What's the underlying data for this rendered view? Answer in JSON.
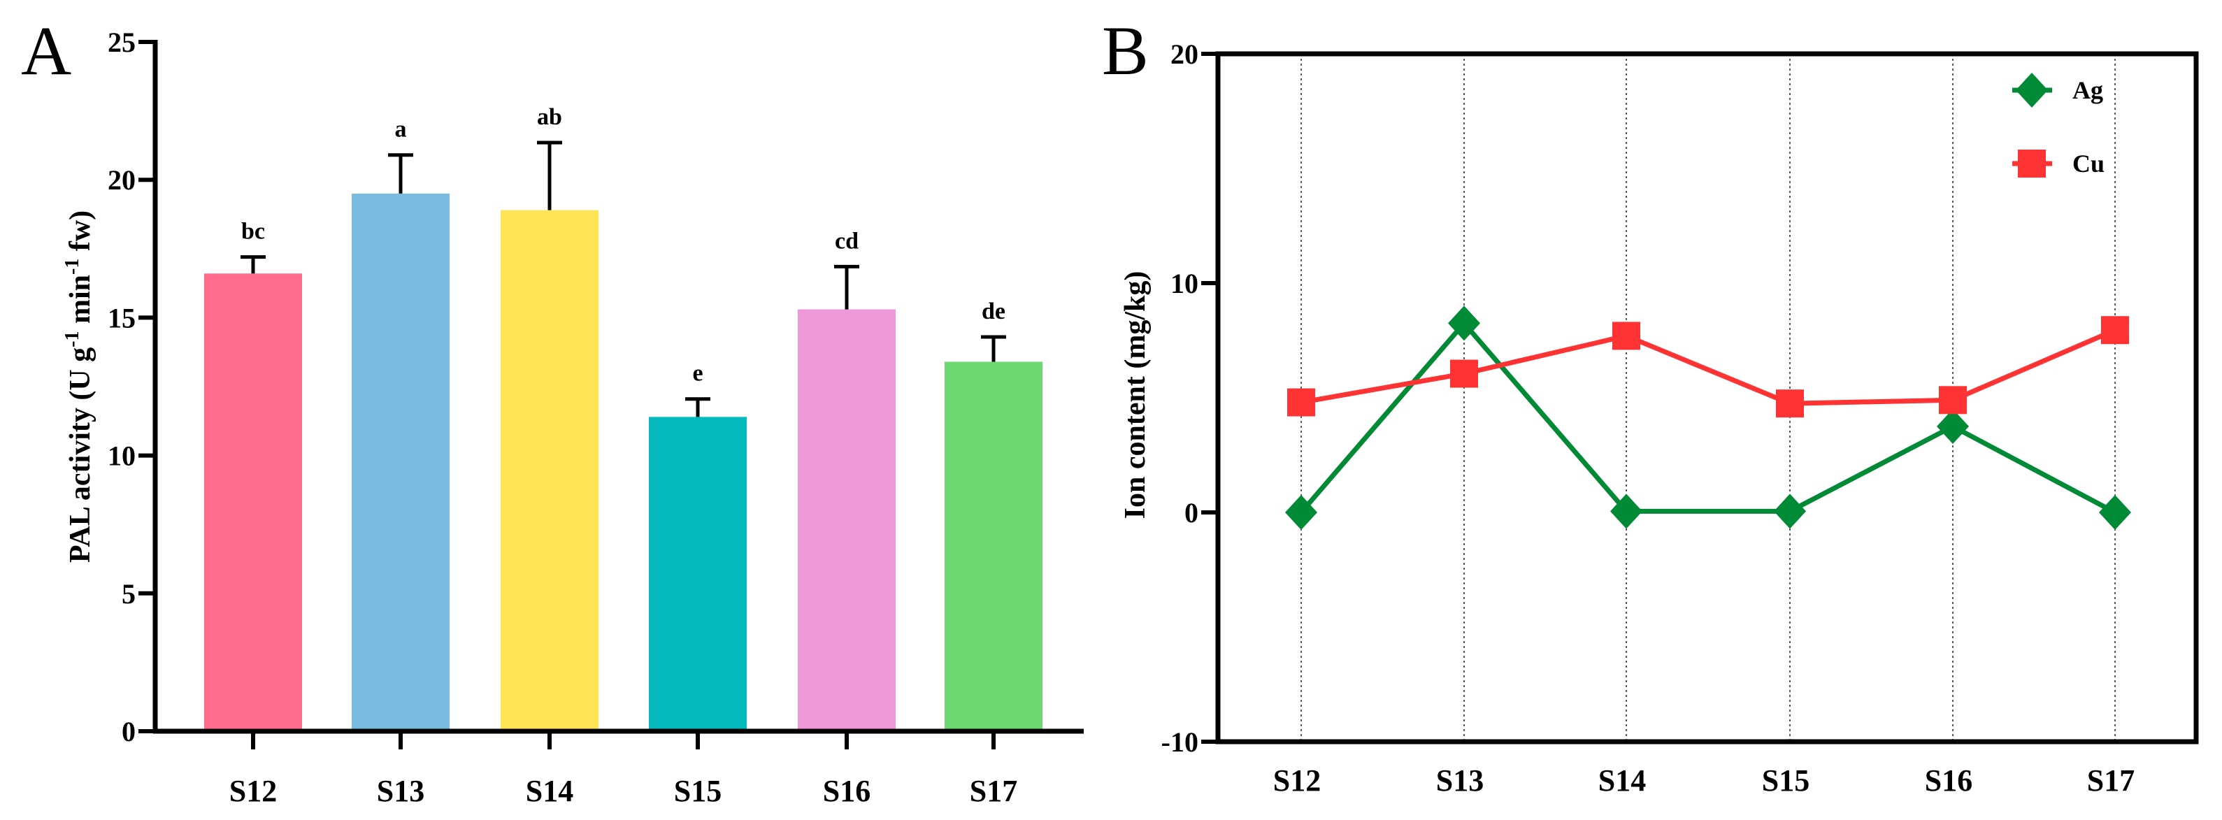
{
  "chart_data": [
    {
      "panel": "A",
      "type": "bar",
      "categories": [
        "S12",
        "S13",
        "S14",
        "S15",
        "S16",
        "S17"
      ],
      "values": [
        16.6,
        19.5,
        18.9,
        11.4,
        15.3,
        13.4
      ],
      "error_upper": [
        0.6,
        1.4,
        2.45,
        0.65,
        1.55,
        0.9
      ],
      "significance": [
        "bc",
        "a",
        "ab",
        "e",
        "cd",
        "de"
      ],
      "colors": [
        "#FF6B8A",
        "#78BCE0",
        "#FFE455",
        "#03B9BB",
        "#F097DA",
        "#6DD872"
      ],
      "ylabel": "PAL activity (U g",
      "ylabel_sup1": "-1",
      "ylabel_mid": " min",
      "ylabel_sup2": "-1",
      "ylabel_end": " fw)",
      "ylim": [
        0,
        25
      ],
      "yticks": [
        "0",
        "5",
        "10",
        "15",
        "20",
        "25"
      ],
      "grid": false
    },
    {
      "panel": "B",
      "type": "line",
      "categories": [
        "S12",
        "S13",
        "S14",
        "S15",
        "S16",
        "S17"
      ],
      "series": [
        {
          "name": "Ag",
          "values": [
            0,
            8.25,
            0.05,
            0.05,
            3.75,
            0
          ],
          "color": "#008A35",
          "marker": "diamond"
        },
        {
          "name": "Cu",
          "values": [
            4.8,
            6.05,
            7.7,
            4.75,
            4.9,
            7.95
          ],
          "color": "#FF3333",
          "marker": "square"
        }
      ],
      "ylabel": "Ion content (mg/kg)",
      "ylim": [
        -10,
        20
      ],
      "yticks": [
        "-10",
        "0",
        "10",
        "20"
      ],
      "grid": "vertical dotted",
      "legend": "top-right"
    }
  ]
}
